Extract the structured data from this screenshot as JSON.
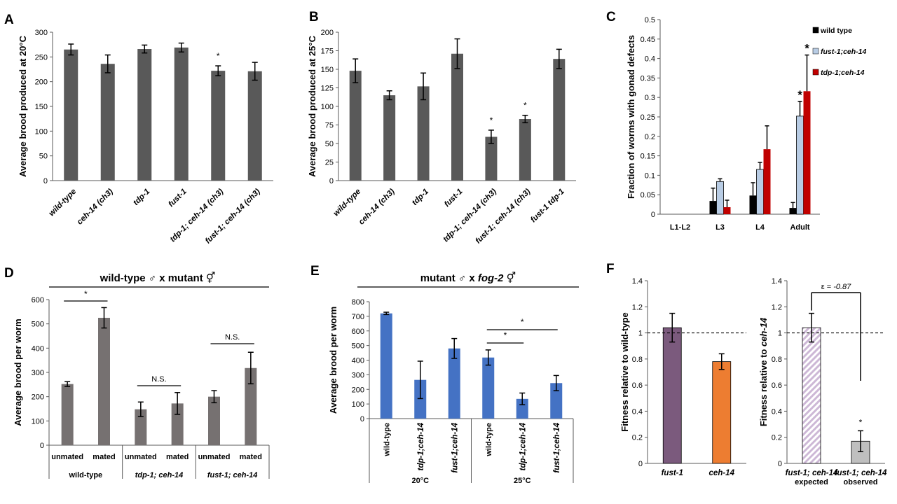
{
  "chart_data": [
    {
      "id": "A",
      "type": "bar",
      "panel_label": "A",
      "ylabel": "Average brood produced at 20°C",
      "ylim": [
        0,
        300
      ],
      "yticks": [
        0,
        50,
        100,
        150,
        200,
        250,
        300
      ],
      "categories": [
        "wild-type",
        "ceh-14 (ch3)",
        "tdp-1",
        "fust-1",
        "tdp-1; ceh-14 (ch3)",
        "fust-1; ceh-14 (ch3)"
      ],
      "values": [
        265,
        236,
        266,
        269,
        222,
        221
      ],
      "errors": [
        11,
        18,
        8,
        9,
        10,
        18
      ],
      "significance": [
        "",
        "",
        "",
        "",
        "*",
        ""
      ],
      "color": "#595959"
    },
    {
      "id": "B",
      "type": "bar",
      "panel_label": "B",
      "ylabel": "Average brood produced at 25°C",
      "ylim": [
        0,
        200
      ],
      "yticks": [
        0,
        25,
        50,
        75,
        100,
        125,
        150,
        175,
        200
      ],
      "categories": [
        "wild-type",
        "ceh-14 (ch3)",
        "tdp-1",
        "fust-1",
        "tdp-1; ceh-14 (ch3)",
        "fust-1; ceh-14 (ch3)",
        "fust-1 tdp-1"
      ],
      "values": [
        148,
        115,
        127,
        171,
        59,
        83,
        164
      ],
      "errors": [
        16,
        6,
        18,
        20,
        9,
        5,
        13
      ],
      "significance": [
        "",
        "",
        "",
        "",
        "*",
        "*",
        ""
      ],
      "color": "#595959"
    },
    {
      "id": "C",
      "type": "bar",
      "panel_label": "C",
      "ylabel": "Fraction of worms with gonad defects",
      "ylim": [
        0,
        0.5
      ],
      "yticks": [
        "0",
        "0.05",
        "0.1",
        "0.15",
        "0.2",
        "0.25",
        "0.3",
        "0.35",
        "0.4",
        "0.45",
        "0.5"
      ],
      "categories": [
        "L1-L2",
        "L3",
        "L4",
        "Adult"
      ],
      "series": [
        {
          "name": "wild type",
          "color": "#000000",
          "values": [
            0,
            0.034,
            0.048,
            0.016
          ],
          "errors": [
            0,
            0.033,
            0.033,
            0.014
          ]
        },
        {
          "name": "fust-1;ceh-14",
          "color": "#b8cce4",
          "values": [
            0,
            0.084,
            0.115,
            0.252
          ],
          "errors": [
            0,
            0.007,
            0.018,
            0.038
          ]
        },
        {
          "name": "tdp-1;ceh-14",
          "color": "#c00000",
          "values": [
            0,
            0.018,
            0.167,
            0.316
          ],
          "errors": [
            0,
            0.018,
            0.06,
            0.093
          ]
        }
      ],
      "significance_adult": [
        "",
        "*",
        "*"
      ]
    },
    {
      "id": "D",
      "type": "bar",
      "panel_label": "D",
      "title_left": "wild-type",
      "title_mid": "x mutant",
      "ylabel": "Average brood per worm",
      "ylim": [
        0,
        600
      ],
      "yticks": [
        0,
        100,
        200,
        300,
        400,
        500,
        600
      ],
      "categories": [
        "unmated",
        "mated",
        "unmated",
        "mated",
        "unmated",
        "mated"
      ],
      "groups": [
        "wild-type",
        "tdp-1; ceh-14",
        "fust-1; ceh-14"
      ],
      "values": [
        252,
        525,
        148,
        172,
        200,
        318
      ],
      "errors": [
        10,
        42,
        30,
        45,
        25,
        65
      ],
      "comparisons": [
        "*",
        "N.S.",
        "N.S."
      ],
      "color": "#767171"
    },
    {
      "id": "E",
      "type": "bar",
      "panel_label": "E",
      "title_left": "mutant",
      "title_mid": "x",
      "title_italic": "fog-2",
      "ylabel": "Average brood per worm",
      "ylim": [
        0,
        800
      ],
      "yticks": [
        0,
        100,
        200,
        300,
        400,
        500,
        600,
        700,
        800
      ],
      "categories": [
        "wild-type",
        "tdp-1;ceh-14",
        "fust-1;ceh-14",
        "wild-type",
        "tdp-1;ceh-14",
        "fust-1;ceh-14"
      ],
      "groups": [
        "20°C",
        "25°C"
      ],
      "values": [
        720,
        265,
        480,
        418,
        135,
        243
      ],
      "errors": [
        8,
        128,
        68,
        52,
        40,
        52
      ],
      "comparisons": [
        "*",
        "*"
      ],
      "color": "#4472c4"
    },
    {
      "id": "F1",
      "type": "bar",
      "panel_label": "F",
      "ylabel": "Fitness relative to wild-type",
      "ylim": [
        0,
        1.4
      ],
      "yticks": [
        "0",
        "0.2",
        "0.4",
        "0.6",
        "0.8",
        "1",
        "1.2",
        "1.4"
      ],
      "categories": [
        "fust-1",
        "ceh-14"
      ],
      "values": [
        1.04,
        0.78
      ],
      "errors": [
        0.11,
        0.06
      ],
      "colors": [
        "#7b5a7d",
        "#ed7d31"
      ],
      "reference_line": 1
    },
    {
      "id": "F2",
      "type": "bar",
      "ylabel_prefix": "Fitness relative to",
      "ylabel_italic": "ceh-14",
      "ylim": [
        0,
        1.4
      ],
      "yticks": [
        "0",
        "0.2",
        "0.4",
        "0.6",
        "0.8",
        "1",
        "1.2",
        "1.4"
      ],
      "categories": [
        "fust-1; ceh-14",
        "fust-1; ceh-14"
      ],
      "sublabels": [
        "expected",
        "observed"
      ],
      "values": [
        1.04,
        0.17
      ],
      "errors": [
        0.11,
        0.08
      ],
      "colors": [
        "#cdb8d6",
        "#bfbfbf"
      ],
      "significance": [
        "",
        "*"
      ],
      "reference_line": 1,
      "epsilon_symbol": "ε =",
      "epsilon_value": "-0.87"
    }
  ]
}
